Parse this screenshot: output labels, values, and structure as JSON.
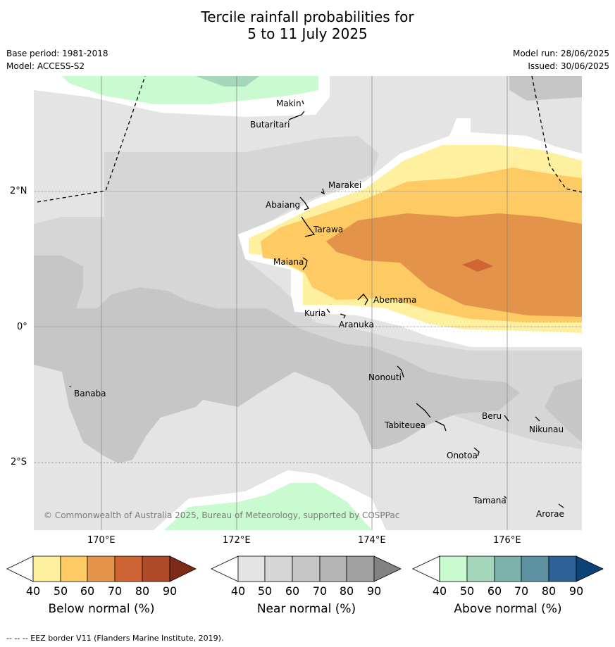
{
  "title": {
    "line1": "Tercile rainfall probabilities for",
    "line2": "5 to 11 July 2025"
  },
  "meta": {
    "base_period": "Base period: 1981-2018",
    "model": "Model: ACCESS-S2",
    "model_run": "Model run: 28/06/2025",
    "issued": "Issued: 30/06/2025"
  },
  "axes": {
    "lat_labels": [
      "2°N",
      "0°",
      "2°S"
    ],
    "lon_labels": [
      "170°E",
      "172°E",
      "174°E",
      "176°E"
    ]
  },
  "places": [
    "Makin",
    "Butaritari",
    "Marakei",
    "Abaiang",
    "Tarawa",
    "Maiana",
    "Abemama",
    "Kuria",
    "Aranuka",
    "Nonouti",
    "Banaba",
    "Tabiteuea",
    "Beru",
    "Nikunau",
    "Onotoa",
    "Tamana",
    "Arorae"
  ],
  "copyright": "© Commonwealth of Australia 2025, Bureau of Meteorology, supported by COSPPac",
  "colorbars": [
    {
      "caption": "Below normal (%)",
      "ticks": [
        "40",
        "50",
        "60",
        "70",
        "80",
        "90"
      ],
      "colors": [
        "#fff0a0",
        "#fdca63",
        "#e3944a",
        "#cf6535",
        "#ae4a27",
        "#7e2a18"
      ]
    },
    {
      "caption": "Near normal (%)",
      "ticks": [
        "40",
        "50",
        "60",
        "70",
        "80",
        "90"
      ],
      "colors": [
        "#e4e4e4",
        "#d6d6d6",
        "#c6c6c6",
        "#b4b4b4",
        "#a1a1a1",
        "#828282"
      ]
    },
    {
      "caption": "Above normal (%)",
      "ticks": [
        "40",
        "50",
        "60",
        "70",
        "80",
        "90"
      ],
      "colors": [
        "#c9fad0",
        "#a4d7bc",
        "#7cb4ad",
        "#5b91a0",
        "#2e6196",
        "#0b4379"
      ]
    }
  ],
  "footer": "--  --  -- EEZ border V11 (Flanders Marine Institute, 2019)."
}
